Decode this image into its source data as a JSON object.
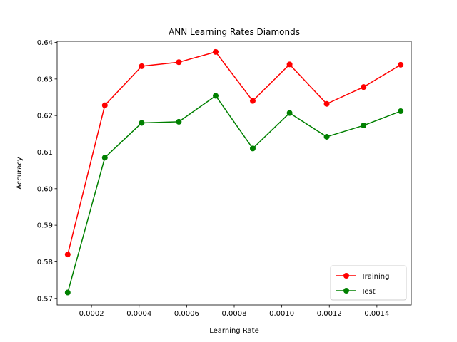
{
  "chart_data": {
    "type": "line",
    "title": "ANN Learning Rates Diamonds",
    "xlabel": "Learning Rate",
    "ylabel": "Accuracy",
    "xlim": [
      5.55e-05,
      0.0015445
    ],
    "ylim": [
      0.5682,
      0.6403
    ],
    "xticks": [
      0.0002,
      0.0004,
      0.0006,
      0.0008,
      0.001,
      0.0012,
      0.0014
    ],
    "xtick_labels": [
      "0.0002",
      "0.0004",
      "0.0006",
      "0.0008",
      "0.0010",
      "0.0012",
      "0.0014"
    ],
    "yticks": [
      0.57,
      0.58,
      0.59,
      0.6,
      0.61,
      0.62,
      0.63,
      0.64
    ],
    "ytick_labels": [
      "0.57",
      "0.58",
      "0.59",
      "0.60",
      "0.61",
      "0.62",
      "0.63",
      "0.64"
    ],
    "x": [
      0.0001,
      0.000256,
      0.000411,
      0.000567,
      0.000722,
      0.000878,
      0.001033,
      0.001189,
      0.001344,
      0.0015
    ],
    "series": [
      {
        "name": "Training",
        "color": "#ff0000",
        "values": [
          0.582,
          0.6228,
          0.6335,
          0.6346,
          0.6374,
          0.624,
          0.634,
          0.6232,
          0.6278,
          0.6339
        ]
      },
      {
        "name": "Test",
        "color": "#008000",
        "values": [
          0.5716,
          0.6085,
          0.618,
          0.6183,
          0.6254,
          0.611,
          0.6207,
          0.6142,
          0.6173,
          0.6212
        ]
      }
    ],
    "grid": false,
    "legend_position": "lower-right"
  }
}
